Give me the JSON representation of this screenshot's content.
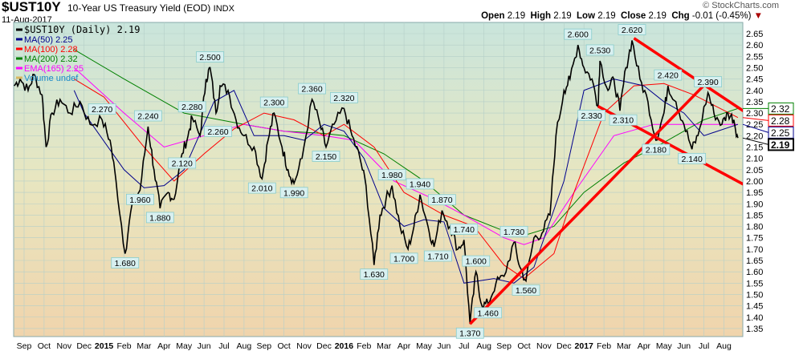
{
  "header": {
    "symbol": "$UST10Y",
    "title": "10-Year US Treasury Yield (EOD)",
    "exchange": "INDX",
    "date": "11-Aug-2017",
    "copyright": "© StockCharts.com",
    "ohlc": {
      "open_label": "Open",
      "open": "2.19",
      "high_label": "High",
      "high": "2.19",
      "low_label": "Low",
      "low": "2.19",
      "close_label": "Close",
      "close": "2.19",
      "chg_label": "Chg",
      "chg": "-0.01 (-0.45%)"
    }
  },
  "colors": {
    "price": "#000000",
    "ma50": "#00008b",
    "ma100": "#ff0000",
    "ma200": "#008000",
    "ema165": "#ff00ff",
    "trend": "#ff0000"
  },
  "chart_data": {
    "type": "line",
    "title": "$UST10Y 10-Year US Treasury Yield (EOD) INDX",
    "ylim": [
      1.35,
      2.65
    ],
    "y_ticks": [
      "2.65",
      "2.60",
      "2.55",
      "2.50",
      "2.45",
      "2.40",
      "2.35",
      "2.30",
      "2.25",
      "2.20",
      "2.15",
      "2.10",
      "2.05",
      "2.00",
      "1.95",
      "1.90",
      "1.85",
      "1.80",
      "1.75",
      "1.70",
      "1.65",
      "1.60",
      "1.55",
      "1.50",
      "1.45",
      "1.40",
      "1.35"
    ],
    "x_ticks": [
      "Sep",
      "Oct",
      "Nov",
      "Dec",
      "2015",
      "Feb",
      "Mar",
      "Apr",
      "May",
      "Jun",
      "Jul",
      "Aug",
      "Sep",
      "Oct",
      "Nov",
      "Dec",
      "2016",
      "Feb",
      "Mar",
      "Apr",
      "May",
      "Jun",
      "Jul",
      "Aug",
      "Sep",
      "Oct",
      "Nov",
      "Dec",
      "2017",
      "Feb",
      "Mar",
      "Apr",
      "May",
      "Jun",
      "Jul",
      "Aug"
    ],
    "x_unit": "months since Sep 2014",
    "legend": [
      {
        "key": "price",
        "label": "$UST10Y (Daily) 2.19"
      },
      {
        "key": "ma50",
        "label": "MA(50) 2.25"
      },
      {
        "key": "ma100",
        "label": "MA(100) 2.28"
      },
      {
        "key": "ma200",
        "label": "MA(200) 2.32"
      },
      {
        "key": "ema165",
        "label": "EMA(165) 2.25"
      },
      {
        "key": "volume",
        "label": "Volume undef"
      }
    ],
    "series": [
      {
        "name": "$UST10Y",
        "key": "price",
        "points": [
          [
            -0.5,
            2.42
          ],
          [
            -0.2,
            2.45
          ],
          [
            0.2,
            2.4
          ],
          [
            0.5,
            2.47
          ],
          [
            0.9,
            2.38
          ],
          [
            1.1,
            2.15
          ],
          [
            1.4,
            2.3
          ],
          [
            1.8,
            2.36
          ],
          [
            2.3,
            2.3
          ],
          [
            2.8,
            2.35
          ],
          [
            3.3,
            2.25
          ],
          [
            3.9,
            2.27
          ],
          [
            4.3,
            2.18
          ],
          [
            4.6,
            2.0
          ],
          [
            5.05,
            1.68
          ],
          [
            5.4,
            1.9
          ],
          [
            5.8,
            1.96
          ],
          [
            6.2,
            2.24
          ],
          [
            6.5,
            2.05
          ],
          [
            6.8,
            1.88
          ],
          [
            7.2,
            1.95
          ],
          [
            7.5,
            1.92
          ],
          [
            7.9,
            2.12
          ],
          [
            8.2,
            2.2
          ],
          [
            8.4,
            2.28
          ],
          [
            8.8,
            2.2
          ],
          [
            9.1,
            2.45
          ],
          [
            9.3,
            2.5
          ],
          [
            9.6,
            2.3
          ],
          [
            9.8,
            2.42
          ],
          [
            10.2,
            2.4
          ],
          [
            10.6,
            2.27
          ],
          [
            11.0,
            2.2
          ],
          [
            11.5,
            2.15
          ],
          [
            11.9,
            2.01
          ],
          [
            12.2,
            2.18
          ],
          [
            12.5,
            2.3
          ],
          [
            12.9,
            2.15
          ],
          [
            13.2,
            2.05
          ],
          [
            13.5,
            1.99
          ],
          [
            13.9,
            2.1
          ],
          [
            14.4,
            2.36
          ],
          [
            14.8,
            2.25
          ],
          [
            15.1,
            2.15
          ],
          [
            15.5,
            2.25
          ],
          [
            16.0,
            2.32
          ],
          [
            16.4,
            2.2
          ],
          [
            16.8,
            2.1
          ],
          [
            17.1,
            1.98
          ],
          [
            17.5,
            1.63
          ],
          [
            17.8,
            1.85
          ],
          [
            18.1,
            1.92
          ],
          [
            18.4,
            1.98
          ],
          [
            18.8,
            1.8
          ],
          [
            19.2,
            1.7
          ],
          [
            19.5,
            1.8
          ],
          [
            19.8,
            1.94
          ],
          [
            20.2,
            1.8
          ],
          [
            20.5,
            1.71
          ],
          [
            20.9,
            1.87
          ],
          [
            21.3,
            1.8
          ],
          [
            21.7,
            1.7
          ],
          [
            22.0,
            1.74
          ],
          [
            22.3,
            1.37
          ],
          [
            22.6,
            1.6
          ],
          [
            22.9,
            1.45
          ],
          [
            23.2,
            1.46
          ],
          [
            23.6,
            1.55
          ],
          [
            24.0,
            1.58
          ],
          [
            24.5,
            1.73
          ],
          [
            24.8,
            1.62
          ],
          [
            25.1,
            1.56
          ],
          [
            25.5,
            1.75
          ],
          [
            25.9,
            1.77
          ],
          [
            26.3,
            1.85
          ],
          [
            26.6,
            2.2
          ],
          [
            27.0,
            2.4
          ],
          [
            27.3,
            2.45
          ],
          [
            27.7,
            2.6
          ],
          [
            28.0,
            2.5
          ],
          [
            28.4,
            2.45
          ],
          [
            28.7,
            2.33
          ],
          [
            28.8,
            2.53
          ],
          [
            29.2,
            2.4
          ],
          [
            29.5,
            2.45
          ],
          [
            29.8,
            2.31
          ],
          [
            30.1,
            2.5
          ],
          [
            30.4,
            2.62
          ],
          [
            30.8,
            2.45
          ],
          [
            31.2,
            2.35
          ],
          [
            31.6,
            2.18
          ],
          [
            32.0,
            2.3
          ],
          [
            32.2,
            2.42
          ],
          [
            32.6,
            2.35
          ],
          [
            33.0,
            2.25
          ],
          [
            33.4,
            2.14
          ],
          [
            33.7,
            2.2
          ],
          [
            34.2,
            2.39
          ],
          [
            34.5,
            2.3
          ],
          [
            34.9,
            2.25
          ],
          [
            35.2,
            2.3
          ],
          [
            35.5,
            2.27
          ],
          [
            35.7,
            2.19
          ]
        ]
      },
      {
        "name": "MA(50)",
        "key": "ma50",
        "points": [
          [
            2.5,
            2.4
          ],
          [
            3,
            2.3
          ],
          [
            5,
            2.05
          ],
          [
            6,
            1.97
          ],
          [
            7,
            1.98
          ],
          [
            8,
            2.05
          ],
          [
            9.5,
            2.35
          ],
          [
            10.5,
            2.4
          ],
          [
            11.5,
            2.2
          ],
          [
            13,
            2.2
          ],
          [
            14,
            2.18
          ],
          [
            15,
            2.25
          ],
          [
            16,
            2.22
          ],
          [
            17,
            2.1
          ],
          [
            18,
            1.88
          ],
          [
            19,
            1.8
          ],
          [
            20,
            1.83
          ],
          [
            21,
            1.82
          ],
          [
            22,
            1.55
          ],
          [
            23.5,
            1.57
          ],
          [
            24.5,
            1.55
          ],
          [
            25.5,
            1.62
          ],
          [
            27,
            2.0
          ],
          [
            28,
            2.4
          ],
          [
            29.5,
            2.45
          ],
          [
            31,
            2.42
          ],
          [
            32,
            2.35
          ],
          [
            33,
            2.3
          ],
          [
            34,
            2.2
          ],
          [
            35.7,
            2.25
          ]
        ]
      },
      {
        "name": "MA(100)",
        "key": "ma100",
        "points": [
          [
            2.5,
            2.45
          ],
          [
            4,
            2.37
          ],
          [
            6,
            2.15
          ],
          [
            7.5,
            2.0
          ],
          [
            9,
            2.12
          ],
          [
            10.5,
            2.23
          ],
          [
            12,
            2.3
          ],
          [
            13.5,
            2.27
          ],
          [
            15,
            2.2
          ],
          [
            16,
            2.25
          ],
          [
            17.5,
            2.15
          ],
          [
            19,
            1.95
          ],
          [
            21,
            1.85
          ],
          [
            22.5,
            1.8
          ],
          [
            24,
            1.63
          ],
          [
            25,
            1.57
          ],
          [
            26.5,
            1.68
          ],
          [
            27.5,
            1.95
          ],
          [
            29,
            2.3
          ],
          [
            30.5,
            2.42
          ],
          [
            32,
            2.43
          ],
          [
            33.5,
            2.38
          ],
          [
            35.7,
            2.28
          ]
        ]
      },
      {
        "name": "MA(200)",
        "key": "ma200",
        "points": [
          [
            2.5,
            2.58
          ],
          [
            5,
            2.45
          ],
          [
            8,
            2.3
          ],
          [
            11,
            2.25
          ],
          [
            13,
            2.22
          ],
          [
            15,
            2.21
          ],
          [
            16,
            2.2
          ],
          [
            18,
            2.12
          ],
          [
            20,
            2.0
          ],
          [
            22,
            1.85
          ],
          [
            24,
            1.78
          ],
          [
            25,
            1.76
          ],
          [
            26.5,
            1.8
          ],
          [
            28,
            1.95
          ],
          [
            30,
            2.08
          ],
          [
            32,
            2.17
          ],
          [
            34,
            2.27
          ],
          [
            35.7,
            2.32
          ]
        ]
      },
      {
        "name": "EMA(165)",
        "key": "ema165",
        "points": [
          [
            2.5,
            2.5
          ],
          [
            5,
            2.3
          ],
          [
            7,
            2.15
          ],
          [
            9,
            2.2
          ],
          [
            11,
            2.25
          ],
          [
            13,
            2.22
          ],
          [
            15,
            2.2
          ],
          [
            16.5,
            2.18
          ],
          [
            18.5,
            2.0
          ],
          [
            20.5,
            1.92
          ],
          [
            22,
            1.85
          ],
          [
            24,
            1.75
          ],
          [
            25,
            1.72
          ],
          [
            26,
            1.75
          ],
          [
            27.5,
            1.95
          ],
          [
            29.5,
            2.2
          ],
          [
            31.5,
            2.25
          ],
          [
            33,
            2.25
          ],
          [
            35.7,
            2.25
          ]
        ]
      }
    ],
    "trend_lines": [
      [
        [
          22.3,
          1.37
        ],
        [
          34.2,
          2.44
        ]
      ],
      [
        [
          30.5,
          2.63
        ],
        [
          36.3,
          2.29
        ]
      ],
      [
        [
          28.7,
          2.33
        ],
        [
          36.3,
          1.97
        ]
      ]
    ],
    "annotations": [
      [
        "2.270",
        3.9,
        2.27
      ],
      [
        "1.680",
        5.05,
        1.68
      ],
      [
        "1.960",
        5.8,
        1.96
      ],
      [
        "2.240",
        6.2,
        2.24
      ],
      [
        "1.880",
        6.8,
        1.88
      ],
      [
        "2.120",
        7.9,
        2.12
      ],
      [
        "2.280",
        8.4,
        2.28
      ],
      [
        "2.500",
        9.3,
        2.5
      ],
      [
        "2.260",
        9.7,
        2.26
      ],
      [
        "2.010",
        11.9,
        2.01
      ],
      [
        "2.300",
        12.5,
        2.3
      ],
      [
        "1.990",
        13.5,
        1.99
      ],
      [
        "2.360",
        14.4,
        2.36
      ],
      [
        "2.150",
        15.1,
        2.15
      ],
      [
        "2.320",
        16.0,
        2.32
      ],
      [
        "1.630",
        17.5,
        1.63
      ],
      [
        "1.980",
        18.4,
        1.98
      ],
      [
        "1.700",
        19.2,
        1.7
      ],
      [
        "1.940",
        19.8,
        1.94
      ],
      [
        "1.710",
        20.5,
        1.71
      ],
      [
        "1.870",
        20.9,
        1.87
      ],
      [
        "1.740",
        22.0,
        1.74
      ],
      [
        "1.370",
        22.3,
        1.37
      ],
      [
        "1.600",
        22.6,
        1.6
      ],
      [
        "1.460",
        23.2,
        1.46
      ],
      [
        "1.730",
        24.5,
        1.73
      ],
      [
        "1.560",
        25.1,
        1.56
      ],
      [
        "2.600",
        27.7,
        2.6
      ],
      [
        "2.330",
        28.7,
        2.33
      ],
      [
        "2.530",
        28.8,
        2.53
      ],
      [
        "2.310",
        29.8,
        2.31
      ],
      [
        "2.620",
        30.4,
        2.62
      ],
      [
        "2.180",
        31.6,
        2.18
      ],
      [
        "2.420",
        32.2,
        2.42
      ],
      [
        "2.140",
        33.4,
        2.14
      ],
      [
        "2.390",
        34.2,
        2.39
      ]
    ],
    "value_tags": [
      {
        "key": "ma200",
        "value": "2.32"
      },
      {
        "key": "ma100",
        "value": "2.28"
      },
      {
        "key": "ma50",
        "value": "2.25"
      },
      {
        "key": "price",
        "value": "2.19"
      }
    ]
  }
}
